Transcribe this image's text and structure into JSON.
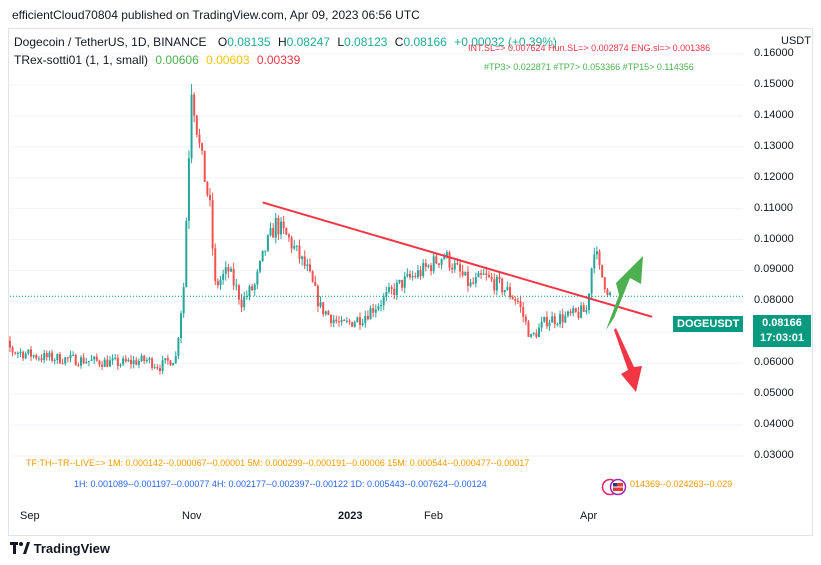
{
  "header": {
    "published": "efficientCloud70804 published on TradingView.com, Apr 09, 2023 06:56 UTC"
  },
  "legend": {
    "symbol": "Dogecoin / TetherUS, 1D, BINANCE",
    "open_label": "O",
    "open": "0.08135",
    "high_label": "H",
    "high": "0.08247",
    "low_label": "L",
    "low": "0.08123",
    "close_label": "C",
    "close": "0.08166",
    "change": "+0.00032 (+0.39%)",
    "indicator_name": "TRex-sotti01 (1, 1, small)",
    "indicator_values": [
      "0.00606",
      "0.00603",
      "0.00339"
    ]
  },
  "overlay_texts": {
    "sl_line": "INT.SL=> 0.007624  Hun.SL=> 0.002874  ENG.sl=> 0.001386",
    "tp_line": "#TP3> 0.022871  #TP7> 0.053366  #TP15> 0.114356",
    "tf_line": "TF:TH--TR--LIVE=>   1M: 0.000142--0.000067--0.00001     5M: 0.000299--0.000191--0.00006     15M: 0.000544--0.000477--0.00017",
    "h_line": "1H: 0.001089--0.001197--0.00077     4H: 0.002177--0.002397--0.00122     1D: 0.005443--0.007624--0.00124",
    "right_line": "014369--0.024263--0.029"
  },
  "axis": {
    "currency": "USDT",
    "price_labels": [
      "0.16000",
      "0.15000",
      "0.14000",
      "0.13000",
      "0.12000",
      "0.11000",
      "0.10000",
      "0.09000",
      "0.08000",
      "0.07000",
      "0.06000",
      "0.05000",
      "0.04000",
      "0.03000"
    ],
    "time_labels": [
      "Sep",
      "Nov",
      "2023",
      "Feb",
      "Apr"
    ]
  },
  "badges": {
    "ticker": "DOGEUSDT",
    "last_price": "0.08166",
    "countdown": "17:03:01"
  },
  "footer": {
    "brand": "TradingView"
  },
  "colors": {
    "up": "#26a69a",
    "down": "#ef5350",
    "trendline": "#f23645",
    "arrow_up": "#4caf50",
    "arrow_down": "#f23645"
  },
  "chart_data": {
    "type": "candlestick",
    "ylim": [
      0.025,
      0.17
    ],
    "y_ticks": [
      0.03,
      0.04,
      0.05,
      0.06,
      0.07,
      0.08,
      0.09,
      0.1,
      0.11,
      0.12,
      0.13,
      0.14,
      0.15,
      0.16
    ],
    "x_ticks": [
      "Sep",
      "Nov",
      "2023",
      "Feb",
      "Apr"
    ],
    "trendline": {
      "from": [
        "2022-11-28",
        0.112
      ],
      "to": [
        "2023-04-25",
        0.075
      ]
    },
    "price_path": [
      [
        "2022-08-15",
        0.072
      ],
      [
        "2022-08-25",
        0.064
      ],
      [
        "2022-09-05",
        0.062
      ],
      [
        "2022-09-20",
        0.061
      ],
      [
        "2022-10-05",
        0.06
      ],
      [
        "2022-10-15",
        0.061
      ],
      [
        "2022-10-20",
        0.059
      ],
      [
        "2022-10-26",
        0.062
      ],
      [
        "2022-10-29",
        0.085
      ],
      [
        "2022-11-01",
        0.15
      ],
      [
        "2022-11-04",
        0.13
      ],
      [
        "2022-11-08",
        0.11
      ],
      [
        "2022-11-10",
        0.085
      ],
      [
        "2022-11-15",
        0.09
      ],
      [
        "2022-11-20",
        0.08
      ],
      [
        "2022-11-25",
        0.085
      ],
      [
        "2022-11-29",
        0.097
      ],
      [
        "2022-12-03",
        0.105
      ],
      [
        "2022-12-08",
        0.1
      ],
      [
        "2022-12-15",
        0.09
      ],
      [
        "2022-12-20",
        0.078
      ],
      [
        "2022-12-28",
        0.072
      ],
      [
        "2023-01-05",
        0.075
      ],
      [
        "2023-01-12",
        0.08
      ],
      [
        "2023-01-20",
        0.086
      ],
      [
        "2023-01-28",
        0.09
      ],
      [
        "2023-02-05",
        0.095
      ],
      [
        "2023-02-10",
        0.09
      ],
      [
        "2023-02-15",
        0.085
      ],
      [
        "2023-02-20",
        0.088
      ],
      [
        "2023-02-28",
        0.084
      ],
      [
        "2023-03-05",
        0.08
      ],
      [
        "2023-03-10",
        0.068
      ],
      [
        "2023-03-16",
        0.074
      ],
      [
        "2023-03-24",
        0.075
      ],
      [
        "2023-03-31",
        0.077
      ],
      [
        "2023-04-03",
        0.098
      ],
      [
        "2023-04-05",
        0.09
      ],
      [
        "2023-04-09",
        0.082
      ]
    ]
  }
}
